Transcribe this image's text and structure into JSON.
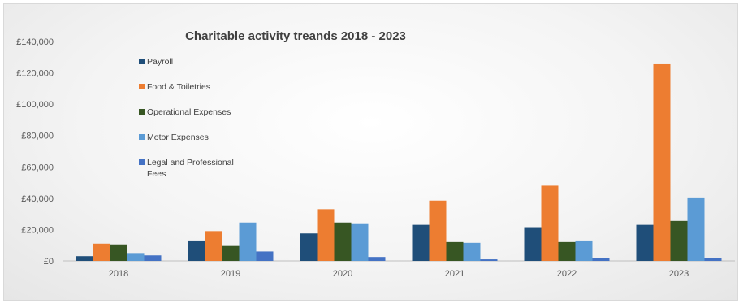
{
  "chart_data": {
    "type": "bar",
    "title": "Charitable activity treands 2018 - 2023",
    "xlabel": "",
    "ylabel": "",
    "categories": [
      "2018",
      "2019",
      "2020",
      "2021",
      "2022",
      "2023"
    ],
    "ylim": [
      0,
      140000
    ],
    "yticks": [
      0,
      20000,
      40000,
      60000,
      80000,
      100000,
      120000,
      140000
    ],
    "ytick_labels": [
      "£0",
      "£20,000",
      "£40,000",
      "£60,000",
      "£80,000",
      "£100,000",
      "£120,000",
      "£140,000"
    ],
    "grid": false,
    "legend_position": "left",
    "series": [
      {
        "name": "Payroll",
        "color": "#1f4e79",
        "values": [
          3000,
          13000,
          17500,
          23000,
          21500,
          23000
        ]
      },
      {
        "name": "Food & Toiletries",
        "color": "#ed7d31",
        "values": [
          11000,
          19000,
          33000,
          38500,
          48000,
          125500
        ]
      },
      {
        "name": "Operational Expenses",
        "color": "#375623",
        "values": [
          10500,
          9500,
          24500,
          12000,
          12000,
          25500
        ]
      },
      {
        "name": "Motor Expenses",
        "color": "#5b9bd5",
        "values": [
          5000,
          24500,
          24000,
          11500,
          13000,
          40500
        ]
      },
      {
        "name": "Legal and Professional Fees",
        "name_lines": [
          "Legal and Professional",
          "Fees"
        ],
        "color": "#4472c4",
        "values": [
          3500,
          6000,
          2500,
          1000,
          2000,
          2000
        ]
      }
    ]
  }
}
